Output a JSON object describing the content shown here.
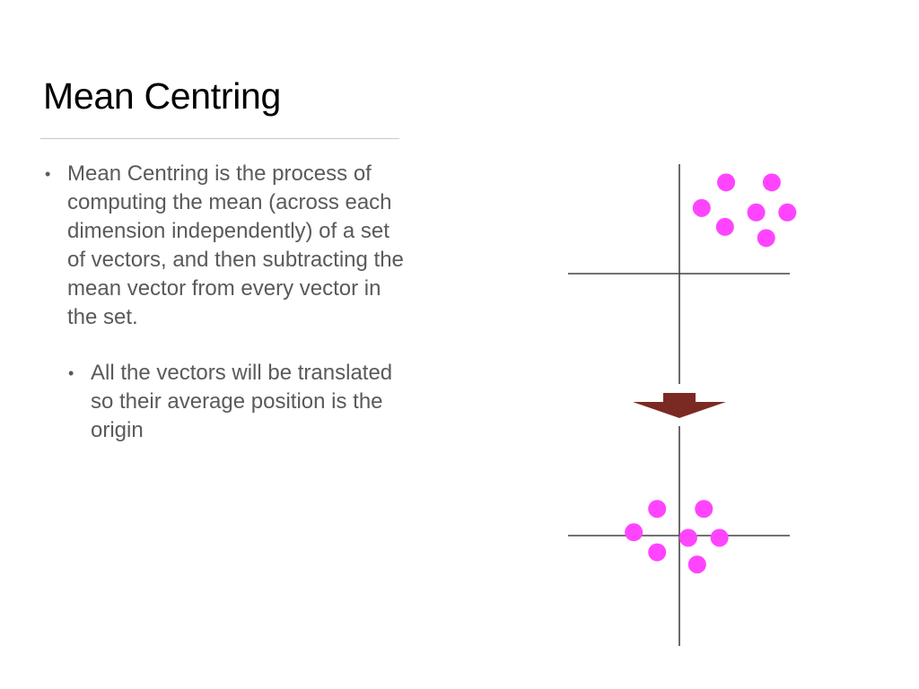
{
  "slide": {
    "title": "Mean Centring",
    "bullets": [
      {
        "level": 1,
        "text": "Mean Centring is the process of computing the mean (across each dimension independently) of a set of vectors, and then subtracting the mean vector from every vector in the set."
      },
      {
        "level": 2,
        "text": "All the vectors will be translated so their average position is the origin"
      }
    ]
  },
  "diagram": {
    "point_color": "#ff44ff",
    "axis_color": "#444444",
    "arrow_color": "#7b2a23",
    "arrow_icon": "down-arrow-icon",
    "top_plot": {
      "description_role": "before",
      "points": [
        [
          0.42,
          0.82
        ],
        [
          0.83,
          0.82
        ],
        [
          0.2,
          0.59
        ],
        [
          0.69,
          0.55
        ],
        [
          0.97,
          0.55
        ],
        [
          0.41,
          0.42
        ],
        [
          0.78,
          0.32
        ]
      ]
    },
    "bottom_plot": {
      "description_role": "after",
      "points": [
        [
          -0.2,
          0.24
        ],
        [
          0.22,
          0.24
        ],
        [
          -0.41,
          0.03
        ],
        [
          0.08,
          -0.02
        ],
        [
          0.36,
          -0.02
        ],
        [
          -0.2,
          -0.15
        ],
        [
          0.16,
          -0.26
        ]
      ]
    }
  }
}
